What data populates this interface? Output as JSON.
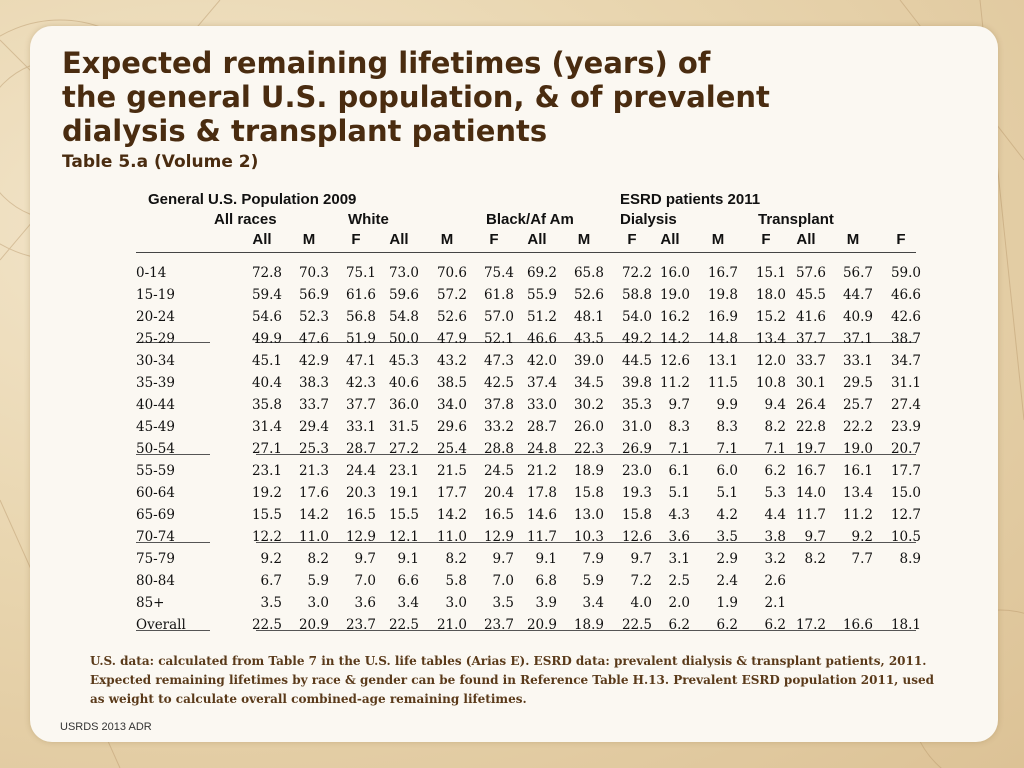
{
  "title_lines": [
    "Expected remaining lifetimes (years) of",
    "the general U.S. population, & of prevalent",
    "dialysis & transplant patients"
  ],
  "subtitle": "Table 5.a (Volume 2)",
  "table": {
    "group_headers": {
      "general": "General U.S. Population 2009",
      "all_races": "All races",
      "white": "White",
      "black": "Black/Af Am",
      "esrd": "ESRD patients 2011",
      "dialysis": "Dialysis",
      "transplant": "Transplant"
    },
    "column_headers": [
      "All",
      "M",
      "F",
      "All",
      "M",
      "F",
      "All",
      "M",
      "F",
      "All",
      "M",
      "F",
      "All",
      "M",
      "F"
    ],
    "rows": [
      {
        "label": "0-14",
        "values": [
          "72.8",
          "70.3",
          "75.1",
          "73.0",
          "70.6",
          "75.4",
          "69.2",
          "65.8",
          "72.2",
          "16.0",
          "16.7",
          "15.1",
          "57.6",
          "56.7",
          "59.0"
        ]
      },
      {
        "label": "15-19",
        "values": [
          "59.4",
          "56.9",
          "61.6",
          "59.6",
          "57.2",
          "61.8",
          "55.9",
          "52.6",
          "58.8",
          "19.0",
          "19.8",
          "18.0",
          "45.5",
          "44.7",
          "46.6"
        ]
      },
      {
        "label": "20-24",
        "values": [
          "54.6",
          "52.3",
          "56.8",
          "54.8",
          "52.6",
          "57.0",
          "51.2",
          "48.1",
          "54.0",
          "16.2",
          "16.9",
          "15.2",
          "41.6",
          "40.9",
          "42.6"
        ]
      },
      {
        "label": "25-29",
        "values": [
          "49.9",
          "47.6",
          "51.9",
          "50.0",
          "47.9",
          "52.1",
          "46.6",
          "43.5",
          "49.2",
          "14.2",
          "14.8",
          "13.4",
          "37.7",
          "37.1",
          "38.7"
        ]
      },
      {
        "label": "30-34",
        "values": [
          "45.1",
          "42.9",
          "47.1",
          "45.3",
          "43.2",
          "47.3",
          "42.0",
          "39.0",
          "44.5",
          "12.6",
          "13.1",
          "12.0",
          "33.7",
          "33.1",
          "34.7"
        ]
      },
      {
        "label": "35-39",
        "values": [
          "40.4",
          "38.3",
          "42.3",
          "40.6",
          "38.5",
          "42.5",
          "37.4",
          "34.5",
          "39.8",
          "11.2",
          "11.5",
          "10.8",
          "30.1",
          "29.5",
          "31.1"
        ]
      },
      {
        "label": "40-44",
        "values": [
          "35.8",
          "33.7",
          "37.7",
          "36.0",
          "34.0",
          "37.8",
          "33.0",
          "30.2",
          "35.3",
          "9.7",
          "9.9",
          "9.4",
          "26.4",
          "25.7",
          "27.4"
        ]
      },
      {
        "label": "45-49",
        "values": [
          "31.4",
          "29.4",
          "33.1",
          "31.5",
          "29.6",
          "33.2",
          "28.7",
          "26.0",
          "31.0",
          "8.3",
          "8.3",
          "8.2",
          "22.8",
          "22.2",
          "23.9"
        ]
      },
      {
        "label": "50-54",
        "values": [
          "27.1",
          "25.3",
          "28.7",
          "27.2",
          "25.4",
          "28.8",
          "24.8",
          "22.3",
          "26.9",
          "7.1",
          "7.1",
          "7.1",
          "19.7",
          "19.0",
          "20.7"
        ]
      },
      {
        "label": "55-59",
        "values": [
          "23.1",
          "21.3",
          "24.4",
          "23.1",
          "21.5",
          "24.5",
          "21.2",
          "18.9",
          "23.0",
          "6.1",
          "6.0",
          "6.2",
          "16.7",
          "16.1",
          "17.7"
        ]
      },
      {
        "label": "60-64",
        "values": [
          "19.2",
          "17.6",
          "20.3",
          "19.1",
          "17.7",
          "20.4",
          "17.8",
          "15.8",
          "19.3",
          "5.1",
          "5.1",
          "5.3",
          "14.0",
          "13.4",
          "15.0"
        ]
      },
      {
        "label": "65-69",
        "values": [
          "15.5",
          "14.2",
          "16.5",
          "15.5",
          "14.2",
          "16.5",
          "14.6",
          "13.0",
          "15.8",
          "4.3",
          "4.2",
          "4.4",
          "11.7",
          "11.2",
          "12.7"
        ]
      },
      {
        "label": "70-74",
        "values": [
          "12.2",
          "11.0",
          "12.9",
          "12.1",
          "11.0",
          "12.9",
          "11.7",
          "10.3",
          "12.6",
          "3.6",
          "3.5",
          "3.8",
          "9.7",
          "9.2",
          "10.5"
        ]
      },
      {
        "label": "75-79",
        "values": [
          "9.2",
          "8.2",
          "9.7",
          "9.1",
          "8.2",
          "9.7",
          "9.1",
          "7.9",
          "9.7",
          "3.1",
          "2.9",
          "3.2",
          "8.2",
          "7.7",
          "8.9"
        ]
      },
      {
        "label": "80-84",
        "values": [
          "6.7",
          "5.9",
          "7.0",
          "6.6",
          "5.8",
          "7.0",
          "6.8",
          "5.9",
          "7.2",
          "2.5",
          "2.4",
          "2.6",
          "",
          "",
          ""
        ]
      },
      {
        "label": "85+",
        "values": [
          "3.5",
          "3.0",
          "3.6",
          "3.4",
          "3.0",
          "3.5",
          "3.9",
          "3.4",
          "4.0",
          "2.0",
          "1.9",
          "2.1",
          "",
          "",
          ""
        ]
      },
      {
        "label": "Overall",
        "values": [
          "22.5",
          "20.9",
          "23.7",
          "22.5",
          "21.0",
          "23.7",
          "20.9",
          "18.9",
          "22.5",
          "6.2",
          "6.2",
          "6.2",
          "17.2",
          "16.6",
          "18.1"
        ]
      }
    ]
  },
  "note_lines": [
    "U.S. data: calculated from Table 7 in the U.S. life tables (Arias E). ESRD data: prevalent dialysis &  transplant patients, 2011.",
    "Expected remaining lifetimes by race & gender can be found in Reference Table H.13. Prevalent ESRD population 2011, used",
    "as weight to calculate overall combined-age remaining lifetimes."
  ],
  "footer": "USRDS 2013 ADR"
}
